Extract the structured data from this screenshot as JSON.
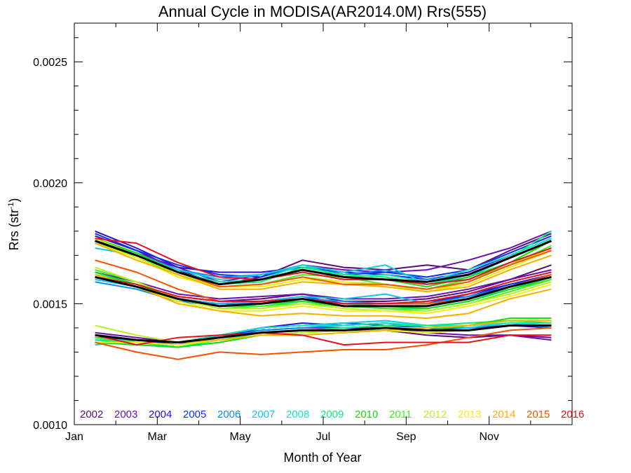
{
  "chart_data": {
    "type": "line",
    "title": "Annual Cycle in MODISA(AR2014.0M) Rrs(555)",
    "xlabel": "Month of Year",
    "ylabel": {
      "base": "Rrs (str",
      "sup": "-1",
      "tail": ")"
    },
    "xlim": [
      0,
      12
    ],
    "ylim": [
      0.001,
      0.00266
    ],
    "x_ticks": [
      {
        "value": 0,
        "label": "Jan"
      },
      {
        "value": 2,
        "label": "Mar"
      },
      {
        "value": 4,
        "label": "May"
      },
      {
        "value": 6,
        "label": "Jul"
      },
      {
        "value": 8,
        "label": "Sep"
      },
      {
        "value": 10,
        "label": "Nov"
      }
    ],
    "y_ticks": [
      {
        "value": 0.001,
        "label": "0.0010"
      },
      {
        "value": 0.0015,
        "label": "0.0015"
      },
      {
        "value": 0.002,
        "label": "0.0020"
      },
      {
        "value": 0.0025,
        "label": "0.0025"
      }
    ],
    "legend": [
      {
        "label": "2002",
        "color": "#5a0a7a"
      },
      {
        "label": "2003",
        "color": "#6a10b0"
      },
      {
        "label": "2004",
        "color": "#2a10d8"
      },
      {
        "label": "2005",
        "color": "#0a30f0"
      },
      {
        "label": "2006",
        "color": "#0a8af0"
      },
      {
        "label": "2007",
        "color": "#10c8e8"
      },
      {
        "label": "2008",
        "color": "#10e8c0"
      },
      {
        "label": "2009",
        "color": "#10e878"
      },
      {
        "label": "2010",
        "color": "#10dc10"
      },
      {
        "label": "2011",
        "color": "#40f020"
      },
      {
        "label": "2012",
        "color": "#b8f020"
      },
      {
        "label": "2013",
        "color": "#f0f010"
      },
      {
        "label": "2014",
        "color": "#f8b000"
      },
      {
        "label": "2015",
        "color": "#f85000"
      },
      {
        "label": "2016",
        "color": "#e8101c"
      }
    ],
    "x": [
      0.5,
      1.5,
      2.5,
      3.5,
      4.5,
      5.5,
      6.5,
      7.5,
      8.5,
      9.5,
      10.5,
      11.5
    ],
    "series": [
      {
        "color": "#5a0a7a",
        "values": [
          0.00178,
          0.00172,
          0.00164,
          0.00158,
          0.00161,
          0.00168,
          0.00165,
          0.00164,
          0.00166,
          0.00164,
          0.00172,
          0.00179
        ]
      },
      {
        "color": "#6a10b0",
        "values": [
          0.00176,
          0.00171,
          0.00165,
          0.00159,
          0.00162,
          0.00166,
          0.00164,
          0.00163,
          0.00164,
          0.00168,
          0.00173,
          0.0018
        ]
      },
      {
        "color": "#2a10d8",
        "values": [
          0.0018,
          0.00173,
          0.00165,
          0.00163,
          0.00163,
          0.00165,
          0.00163,
          0.00162,
          0.0016,
          0.00163,
          0.0017,
          0.00177
        ]
      },
      {
        "color": "#0a30f0",
        "values": [
          0.00179,
          0.00172,
          0.00166,
          0.00162,
          0.00161,
          0.00166,
          0.00162,
          0.00163,
          0.00161,
          0.00164,
          0.00171,
          0.00178
        ]
      },
      {
        "color": "#0a8af0",
        "values": [
          0.00177,
          0.00171,
          0.00164,
          0.00161,
          0.00162,
          0.00165,
          0.00162,
          0.00164,
          0.0016,
          0.00162,
          0.00169,
          0.00176
        ]
      },
      {
        "color": "#10c8e8",
        "values": [
          0.00173,
          0.0017,
          0.00164,
          0.0016,
          0.00162,
          0.00166,
          0.00163,
          0.00166,
          0.00158,
          0.00161,
          0.00169,
          0.00176
        ]
      },
      {
        "color": "#10e8c0",
        "values": [
          0.00175,
          0.00171,
          0.00163,
          0.00159,
          0.0016,
          0.00166,
          0.00161,
          0.00162,
          0.00159,
          0.00164,
          0.0017,
          0.00177
        ]
      },
      {
        "color": "#10e878",
        "values": [
          0.00176,
          0.0017,
          0.00163,
          0.00158,
          0.00159,
          0.00165,
          0.00162,
          0.00161,
          0.00158,
          0.00162,
          0.00169,
          0.0018
        ]
      },
      {
        "color": "#10dc10",
        "values": [
          0.00177,
          0.00171,
          0.00163,
          0.00158,
          0.0016,
          0.00163,
          0.0016,
          0.0016,
          0.00157,
          0.00161,
          0.00167,
          0.00176
        ]
      },
      {
        "color": "#40f020",
        "values": [
          0.00176,
          0.00169,
          0.00162,
          0.00157,
          0.00158,
          0.00162,
          0.00161,
          0.00158,
          0.00156,
          0.0016,
          0.00166,
          0.00174
        ]
      },
      {
        "color": "#b8f020",
        "values": [
          0.00177,
          0.0017,
          0.00162,
          0.00157,
          0.00158,
          0.00161,
          0.00159,
          0.00158,
          0.00155,
          0.00159,
          0.00166,
          0.00173
        ]
      },
      {
        "color": "#f0f010",
        "values": [
          0.00175,
          0.00169,
          0.00161,
          0.00157,
          0.00157,
          0.0016,
          0.00159,
          0.00157,
          0.00155,
          0.00158,
          0.00165,
          0.00172
        ]
      },
      {
        "color": "#f8b000",
        "values": [
          0.00175,
          0.00168,
          0.00162,
          0.00156,
          0.00156,
          0.00159,
          0.00158,
          0.00157,
          0.00155,
          0.00157,
          0.00164,
          0.0017
        ]
      },
      {
        "color": "#f85000",
        "values": [
          0.00176,
          0.0017,
          0.00163,
          0.00157,
          0.00158,
          0.00161,
          0.00158,
          0.00158,
          0.00156,
          0.00159,
          0.00166,
          0.00172
        ]
      },
      {
        "color": "#e8101c",
        "values": [
          0.00177,
          0.00175,
          0.00167,
          0.00161,
          0.0016,
          0.00163,
          0.0016,
          0.0016,
          0.00158,
          0.0016,
          0.00167,
          0.00173
        ]
      },
      {
        "color": "#000000",
        "values": [
          0.00176,
          0.0017,
          0.00163,
          0.00158,
          0.0016,
          0.00164,
          0.00161,
          0.0016,
          0.00159,
          0.00162,
          0.00169,
          0.00176
        ]
      },
      {
        "color": "#5a0a7a",
        "values": [
          0.00162,
          0.00158,
          0.00153,
          0.00151,
          0.00152,
          0.00154,
          0.00151,
          0.00151,
          0.00152,
          0.00155,
          0.0016,
          0.00166
        ]
      },
      {
        "color": "#6a10b0",
        "values": [
          0.00163,
          0.00159,
          0.00154,
          0.00152,
          0.00153,
          0.00154,
          0.00152,
          0.00152,
          0.00153,
          0.00156,
          0.0016,
          0.00164
        ]
      },
      {
        "color": "#2a10d8",
        "values": [
          0.00161,
          0.00157,
          0.00152,
          0.0015,
          0.00151,
          0.00153,
          0.0015,
          0.0015,
          0.00151,
          0.00153,
          0.00158,
          0.00162
        ]
      },
      {
        "color": "#0a30f0",
        "values": [
          0.00162,
          0.00157,
          0.00151,
          0.0015,
          0.0015,
          0.00152,
          0.0015,
          0.0015,
          0.0015,
          0.00154,
          0.00158,
          0.00161
        ]
      },
      {
        "color": "#0a8af0",
        "values": [
          0.00159,
          0.00156,
          0.00151,
          0.00149,
          0.00151,
          0.00152,
          0.00151,
          0.0015,
          0.0015,
          0.00153,
          0.00157,
          0.00161
        ]
      },
      {
        "color": "#10c8e8",
        "values": [
          0.0016,
          0.00157,
          0.00152,
          0.0015,
          0.00151,
          0.00153,
          0.00152,
          0.00154,
          0.0015,
          0.00152,
          0.00157,
          0.00162
        ]
      },
      {
        "color": "#10e8c0",
        "values": [
          0.00161,
          0.00157,
          0.00152,
          0.00149,
          0.0015,
          0.00152,
          0.0015,
          0.00149,
          0.00149,
          0.00152,
          0.00156,
          0.0016
        ]
      },
      {
        "color": "#10e878",
        "values": [
          0.00162,
          0.00158,
          0.00152,
          0.00149,
          0.00149,
          0.00151,
          0.00149,
          0.00148,
          0.00148,
          0.00151,
          0.00156,
          0.00161
        ]
      },
      {
        "color": "#10dc10",
        "values": [
          0.00163,
          0.00158,
          0.00152,
          0.00149,
          0.0015,
          0.00151,
          0.00149,
          0.00149,
          0.00148,
          0.00151,
          0.00156,
          0.0016
        ]
      },
      {
        "color": "#40f020",
        "values": [
          0.00164,
          0.00159,
          0.00152,
          0.00148,
          0.00149,
          0.0015,
          0.00149,
          0.00148,
          0.00147,
          0.0015,
          0.00155,
          0.0016
        ]
      },
      {
        "color": "#b8f020",
        "values": [
          0.00165,
          0.00159,
          0.00152,
          0.00148,
          0.00148,
          0.0015,
          0.00148,
          0.00147,
          0.00147,
          0.0015,
          0.00154,
          0.00159
        ]
      },
      {
        "color": "#f0f010",
        "values": [
          0.00162,
          0.00157,
          0.00151,
          0.00147,
          0.00147,
          0.00149,
          0.00147,
          0.00147,
          0.00146,
          0.00149,
          0.00153,
          0.00158
        ]
      },
      {
        "color": "#f8b000",
        "values": [
          0.00162,
          0.00157,
          0.0015,
          0.00147,
          0.00145,
          0.00146,
          0.00145,
          0.00145,
          0.00144,
          0.00146,
          0.00152,
          0.00156
        ]
      },
      {
        "color": "#f85000",
        "values": [
          0.00168,
          0.00163,
          0.00156,
          0.00151,
          0.00151,
          0.00152,
          0.0015,
          0.0015,
          0.0015,
          0.00152,
          0.00157,
          0.00162
        ]
      },
      {
        "color": "#e8101c",
        "values": [
          0.00161,
          0.00158,
          0.00153,
          0.00151,
          0.00151,
          0.00152,
          0.0015,
          0.0015,
          0.00151,
          0.00154,
          0.00159,
          0.00163
        ]
      },
      {
        "color": "#000000",
        "values": [
          0.00161,
          0.00157,
          0.00152,
          0.00149,
          0.0015,
          0.00152,
          0.00149,
          0.00149,
          0.00149,
          0.00152,
          0.00157,
          0.00161
        ]
      },
      {
        "color": "#5a0a7a",
        "values": [
          0.00137,
          0.00135,
          0.00134,
          0.00136,
          0.00138,
          0.00139,
          0.00139,
          0.00139,
          0.00137,
          0.00136,
          0.00137,
          0.00136
        ]
      },
      {
        "color": "#6a10b0",
        "values": [
          0.00138,
          0.00136,
          0.00134,
          0.00137,
          0.00139,
          0.0014,
          0.0014,
          0.0014,
          0.00138,
          0.00137,
          0.00137,
          0.00135
        ]
      },
      {
        "color": "#2a10d8",
        "values": [
          0.00136,
          0.00134,
          0.00133,
          0.00137,
          0.0014,
          0.00142,
          0.00141,
          0.00142,
          0.0014,
          0.00139,
          0.00141,
          0.0014
        ]
      },
      {
        "color": "#0a30f0",
        "values": [
          0.00136,
          0.00135,
          0.00133,
          0.00136,
          0.0014,
          0.00141,
          0.00142,
          0.00141,
          0.0014,
          0.0014,
          0.00141,
          0.00141
        ]
      },
      {
        "color": "#0a8af0",
        "values": [
          0.00135,
          0.00134,
          0.00133,
          0.00136,
          0.00139,
          0.0014,
          0.00141,
          0.00142,
          0.0014,
          0.0014,
          0.00142,
          0.0014
        ]
      },
      {
        "color": "#10c8e8",
        "values": [
          0.00133,
          0.00135,
          0.00134,
          0.00137,
          0.0014,
          0.00141,
          0.00142,
          0.00143,
          0.00141,
          0.0014,
          0.00142,
          0.00141
        ]
      },
      {
        "color": "#10e8c0",
        "values": [
          0.00135,
          0.00135,
          0.00134,
          0.00137,
          0.0014,
          0.00141,
          0.00141,
          0.00142,
          0.00141,
          0.00141,
          0.00142,
          0.00142
        ]
      },
      {
        "color": "#10e878",
        "values": [
          0.00135,
          0.00134,
          0.00132,
          0.00135,
          0.00138,
          0.00139,
          0.0014,
          0.00141,
          0.00141,
          0.00142,
          0.00143,
          0.00142
        ]
      },
      {
        "color": "#10dc10",
        "values": [
          0.00134,
          0.00133,
          0.00132,
          0.00134,
          0.00137,
          0.00138,
          0.00139,
          0.0014,
          0.00139,
          0.00141,
          0.00144,
          0.00144
        ]
      },
      {
        "color": "#40f020",
        "values": [
          0.00136,
          0.00134,
          0.00133,
          0.00135,
          0.00137,
          0.00138,
          0.00139,
          0.00139,
          0.00138,
          0.00139,
          0.00141,
          0.00141
        ]
      },
      {
        "color": "#b8f020",
        "values": [
          0.00141,
          0.00137,
          0.00134,
          0.00135,
          0.00137,
          0.00138,
          0.00139,
          0.0014,
          0.0014,
          0.00141,
          0.00143,
          0.00143
        ]
      },
      {
        "color": "#f0f010",
        "values": [
          0.00134,
          0.00134,
          0.00133,
          0.00135,
          0.00137,
          0.00137,
          0.00138,
          0.00139,
          0.00138,
          0.00139,
          0.00141,
          0.00141
        ]
      },
      {
        "color": "#f8b000",
        "values": [
          0.00137,
          0.00135,
          0.00134,
          0.00135,
          0.00137,
          0.00137,
          0.00138,
          0.00139,
          0.0014,
          0.00141,
          0.00143,
          0.00143
        ]
      },
      {
        "color": "#f85000",
        "values": [
          0.00134,
          0.0013,
          0.00127,
          0.0013,
          0.00129,
          0.0013,
          0.00131,
          0.00131,
          0.00133,
          0.00136,
          0.00139,
          0.0014
        ]
      },
      {
        "color": "#e8101c",
        "values": [
          0.00137,
          0.00133,
          0.00136,
          0.00137,
          0.00138,
          0.00137,
          0.00133,
          0.00134,
          0.00134,
          0.00134,
          0.00137,
          0.00137
        ]
      },
      {
        "color": "#000000",
        "values": [
          0.00137,
          0.00135,
          0.00134,
          0.00136,
          0.00138,
          0.00139,
          0.00139,
          0.0014,
          0.00139,
          0.00139,
          0.00141,
          0.00141
        ]
      }
    ]
  }
}
